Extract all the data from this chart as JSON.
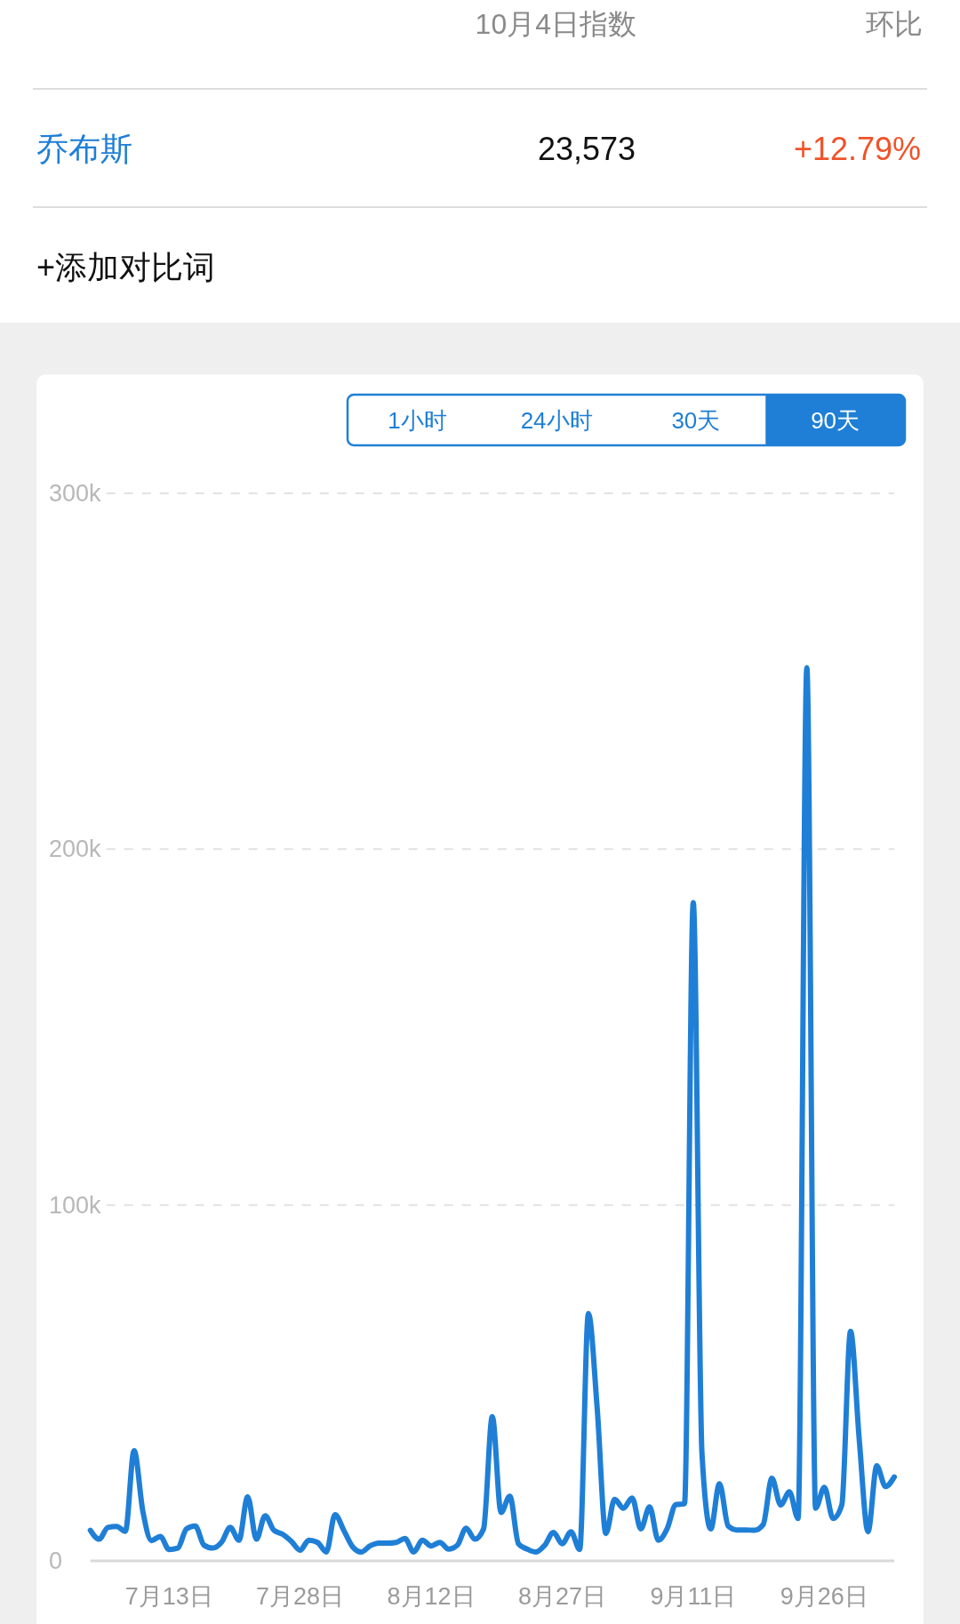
{
  "chart_data": {
    "type": "line",
    "annotations": [
      "10月4日指数",
      "环比",
      "23,573",
      "+12.79%",
      "+添加对比词",
      "1小时",
      "24小时",
      "30天",
      "90天"
    ],
    "x": [
      "--07-04",
      "--07-05",
      "--07-06",
      "--07-07",
      "--07-08",
      "--07-09",
      "--07-10",
      "--07-11",
      "--07-12",
      "--07-13",
      "--07-14",
      "--07-15",
      "--07-16",
      "--07-17",
      "--07-18",
      "--07-19",
      "--07-20",
      "--07-21",
      "--07-22",
      "--07-23",
      "--07-24",
      "--07-25",
      "--07-26",
      "--07-27",
      "--07-28",
      "--07-29",
      "--07-30",
      "--07-31",
      "--08-01",
      "--08-02",
      "--08-03",
      "--08-04",
      "--08-05",
      "--08-06",
      "--08-07",
      "--08-08",
      "--08-09",
      "--08-10",
      "--08-11",
      "--08-12",
      "--08-13",
      "--08-14",
      "--08-15",
      "--08-16",
      "--08-17",
      "--08-18",
      "--08-19",
      "--08-20",
      "--08-21",
      "--08-22",
      "--08-23",
      "--08-24",
      "--08-25",
      "--08-26",
      "--08-27",
      "--08-28",
      "--08-29",
      "--08-30",
      "--08-31",
      "--09-01",
      "--09-02",
      "--09-03",
      "--09-04",
      "--09-05",
      "--09-06",
      "--09-07",
      "--09-08",
      "--09-09",
      "--09-10",
      "--09-11",
      "--09-12",
      "--09-13",
      "--09-14",
      "--09-15",
      "--09-16",
      "--09-17",
      "--09-18",
      "--09-19",
      "--09-20",
      "--09-21",
      "--09-22",
      "--09-23",
      "--09-24",
      "--09-25",
      "--09-26",
      "--09-27",
      "--09-28",
      "--09-29",
      "--09-30",
      "--10-01",
      "--10-02",
      "--10-03",
      "--10-04"
    ],
    "series": [
      {
        "name": "乔布斯",
        "color": "#1f7fd6",
        "values": [
          8600,
          6100,
          9400,
          9700,
          8300,
          31000,
          14000,
          5700,
          6900,
          3200,
          3600,
          9000,
          9800,
          4400,
          3600,
          5200,
          9400,
          5800,
          18000,
          6100,
          12700,
          8600,
          7500,
          5500,
          3000,
          5800,
          5200,
          2500,
          13000,
          8600,
          4000,
          2500,
          4200,
          5000,
          5000,
          5200,
          6300,
          2500,
          5800,
          4200,
          5200,
          3300,
          4400,
          9200,
          6100,
          9000,
          40500,
          13600,
          18200,
          4800,
          3300,
          2500,
          4400,
          8000,
          4800,
          8200,
          3200,
          69500,
          43000,
          7700,
          17300,
          14800,
          17700,
          9000,
          15200,
          5800,
          9000,
          15800,
          16100,
          185000,
          30000,
          9000,
          21700,
          9800,
          8700,
          8700,
          8600,
          10200,
          23200,
          15700,
          19400,
          11900,
          251000,
          14800,
          20700,
          11900,
          15700,
          64500,
          34000,
          8200,
          26700,
          20900,
          23573
        ]
      }
    ],
    "xlim": [
      "--07-04",
      "--10-04"
    ],
    "xticks": [
      {
        "value": "--07-13",
        "label": "7月13日"
      },
      {
        "value": "--07-28",
        "label": "7月28日"
      },
      {
        "value": "--08-12",
        "label": "8月12日"
      },
      {
        "value": "--08-27",
        "label": "8月27日"
      },
      {
        "value": "--09-11",
        "label": "9月11日"
      },
      {
        "value": "--09-26",
        "label": "9月26日"
      }
    ],
    "ylim": [
      0,
      300000
    ],
    "yticks": [
      0,
      {
        "value": 100000,
        "label": "100k"
      },
      {
        "value": 200000,
        "label": "200k"
      },
      {
        "value": 300000,
        "label": "300k"
      }
    ],
    "grid": "y",
    "legend": "top left"
  }
}
